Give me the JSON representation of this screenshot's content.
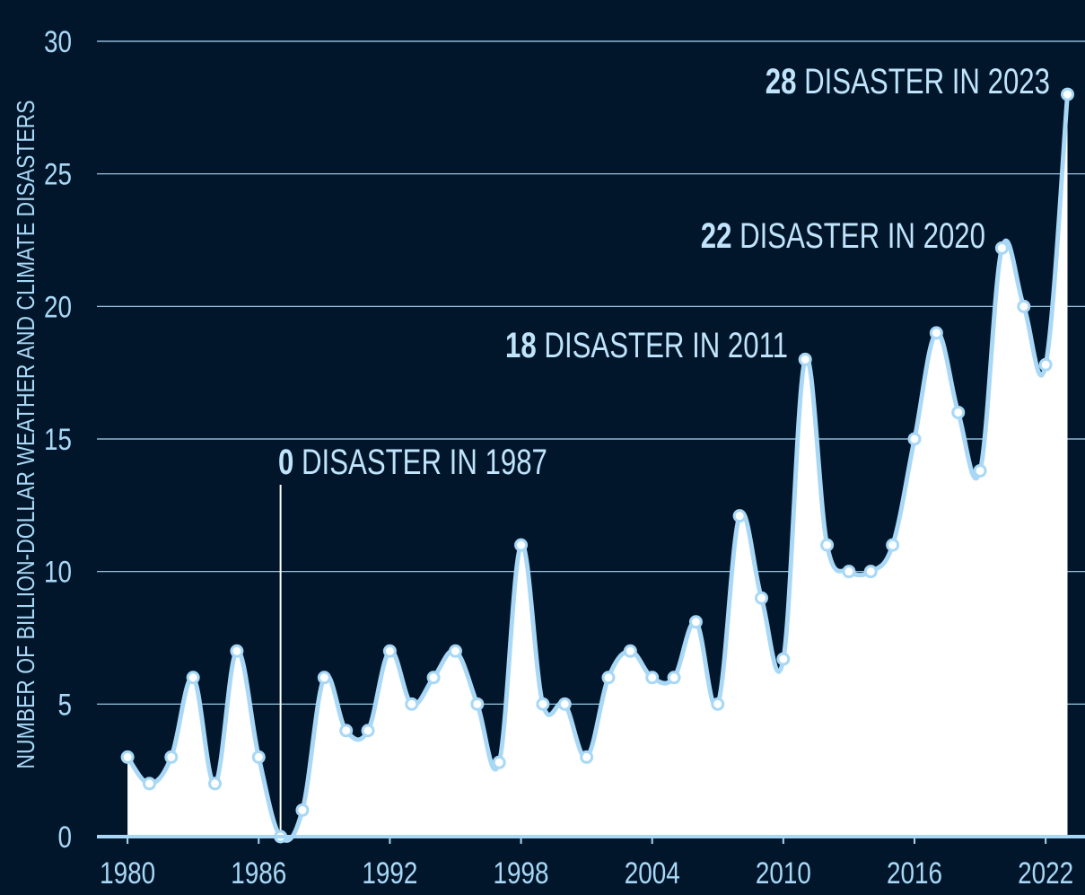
{
  "chart_data": {
    "type": "area",
    "ylabel": "NUMBER OF BILLION-DOLLAR WEATHER AND CLIMATE DISASTERS",
    "xlabel": "",
    "title": "",
    "ylim": [
      0,
      30
    ],
    "xlim": [
      1978.6,
      2023.8
    ],
    "y_ticks": [
      "0",
      "5",
      "10",
      "15",
      "20",
      "25",
      "30"
    ],
    "x_ticks": [
      "1980",
      "1986",
      "1992",
      "1998",
      "2004",
      "2010",
      "2016",
      "2022"
    ],
    "grid": true,
    "series": [
      {
        "x": [
          1980,
          1981,
          1982,
          1983,
          1984,
          1985,
          1986,
          1987,
          1988,
          1989,
          1990,
          1991,
          1992,
          1993,
          1994,
          1995,
          1996,
          1997,
          1998,
          1999,
          2000,
          2001,
          2002,
          2003,
          2004,
          2005,
          2006,
          2007,
          2008,
          2009,
          2010,
          2011,
          2012,
          2013,
          2014,
          2015,
          2016,
          2017,
          2018,
          2019,
          2020,
          2021,
          2022,
          2023
        ],
        "values": [
          3,
          2,
          3,
          6,
          2,
          7,
          3,
          0,
          1,
          6,
          4,
          4,
          7,
          5,
          6,
          7,
          5,
          2.8,
          11,
          5,
          5,
          3,
          6,
          7,
          6,
          6,
          8.1,
          5,
          12.1,
          9,
          6.7,
          18,
          11,
          10,
          10,
          11,
          15,
          19,
          16,
          13.8,
          22.2,
          20,
          17.8,
          28
        ]
      }
    ],
    "annotations": [
      {
        "year": 1987,
        "value": 0,
        "number": "0",
        "text": " DISASTER IN 1987"
      },
      {
        "year": 2011,
        "value": 18,
        "number": "18",
        "text": " DISASTER IN 2011"
      },
      {
        "year": 2020,
        "value": 22,
        "number": "22",
        "text": " DISASTER IN 2020"
      },
      {
        "year": 2023,
        "value": 28,
        "number": "28",
        "text": " DISASTER IN 2023"
      }
    ],
    "colors": {
      "background": "#02162b",
      "area_fill": "#ffffff",
      "line": "#a8d8f6",
      "grid": "#a8d8f6",
      "text": "#a8d8f6"
    }
  }
}
